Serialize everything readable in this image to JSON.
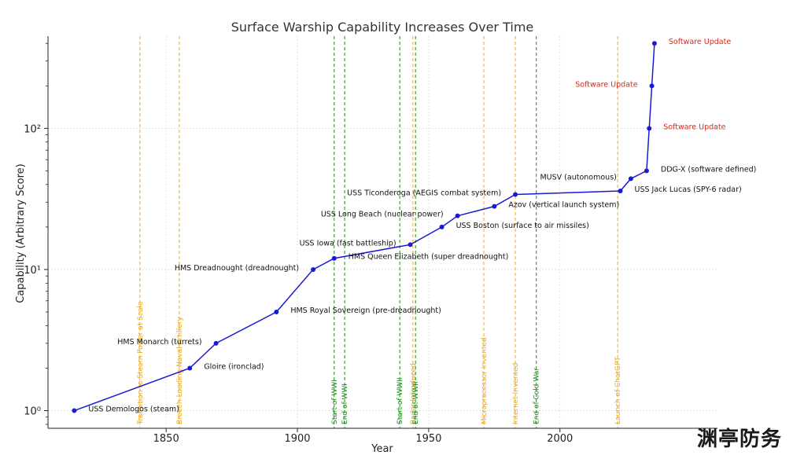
{
  "chart_data": {
    "type": "line",
    "title": "Surface Warship Capability Increases Over Time",
    "xlabel": "Year",
    "ylabel": "Capability (Arbitrary Score)",
    "xlim": [
      1805,
      2060
    ],
    "ylim": [
      0.75,
      450
    ],
    "yscale": "log",
    "x_ticks": [
      1850,
      1900,
      1950,
      2000
    ],
    "y_ticks": [
      {
        "value": 1,
        "label": "10⁰"
      },
      {
        "value": 10,
        "label": "10¹"
      },
      {
        "value": 100,
        "label": "10²"
      }
    ],
    "grid": true,
    "line_color": "#1a1ad6",
    "series": [
      {
        "points": [
          {
            "x": 1815,
            "y": 1,
            "label": "USS Demologos (steam)",
            "side": "right"
          },
          {
            "x": 1859,
            "y": 2,
            "label": "Gloire (ironclad)",
            "side": "right"
          },
          {
            "x": 1869,
            "y": 3,
            "label": "HMS Monarch (turrets)",
            "side": "left"
          },
          {
            "x": 1892,
            "y": 5,
            "label": "HMS Royal Sovereign (pre-dreadnought)",
            "side": "right"
          },
          {
            "x": 1906,
            "y": 10,
            "label": "HMS Dreadnought (dreadnought)",
            "side": "left"
          },
          {
            "x": 1914,
            "y": 12,
            "label": "HMS Queen Elizabeth (super dreadnought)",
            "side": "right"
          },
          {
            "x": 1943,
            "y": 15,
            "label": "USS Iowa (fast battleship)",
            "side": "left"
          },
          {
            "x": 1955,
            "y": 20,
            "label": "USS Boston (surface to air missiles)",
            "side": "right"
          },
          {
            "x": 1961,
            "y": 24,
            "label": "USS Long Beach (nuclear power)",
            "side": "left"
          },
          {
            "x": 1975,
            "y": 28,
            "label": "Azov (vertical launch system)",
            "side": "right"
          },
          {
            "x": 1983,
            "y": 34,
            "label": "USS Ticonderoga (AEGIS combat system)",
            "side": "left"
          },
          {
            "x": 2023,
            "y": 36,
            "label": "USS Jack Lucas (SPY-6 radar)",
            "side": "right"
          },
          {
            "x": 2027,
            "y": 44,
            "label": "MUSV (autonomous)",
            "side": "left"
          },
          {
            "x": 2033,
            "y": 50,
            "label": "DDG-X (software defined)",
            "side": "right"
          },
          {
            "x": 2034,
            "y": 100,
            "label": "Software Update",
            "side": "right",
            "color": "red"
          },
          {
            "x": 2035,
            "y": 200,
            "label": "Software Update",
            "side": "left",
            "color": "red"
          },
          {
            "x": 2036,
            "y": 400,
            "label": "Software Update",
            "side": "right",
            "color": "red"
          }
        ]
      }
    ],
    "vlines": [
      {
        "x": 1840,
        "label": "Transition to Steam Power at Scale",
        "kind": "tech"
      },
      {
        "x": 1855,
        "label": "Breech-Loading Naval Artillery",
        "kind": "tech"
      },
      {
        "x": 1914,
        "label": "Start of WWI",
        "kind": "war"
      },
      {
        "x": 1918,
        "label": "End of WWI",
        "kind": "war"
      },
      {
        "x": 1939,
        "label": "Start of WWII",
        "kind": "war"
      },
      {
        "x": 1944,
        "label": "Radar Introduced",
        "kind": "tech"
      },
      {
        "x": 1945,
        "label": "End of WWII",
        "kind": "war"
      },
      {
        "x": 1971,
        "label": "Microprocessor Invented",
        "kind": "tech"
      },
      {
        "x": 1983,
        "label": "Internet Invented",
        "kind": "tech"
      },
      {
        "x": 1991,
        "label": "End of Cold War",
        "kind": "war"
      },
      {
        "x": 2022,
        "label": "Launch of ChatGPT",
        "kind": "tech"
      }
    ],
    "colors": {
      "tech": "#f0a818",
      "war": "#1f8c1f"
    }
  },
  "watermark": "渊亭防务"
}
